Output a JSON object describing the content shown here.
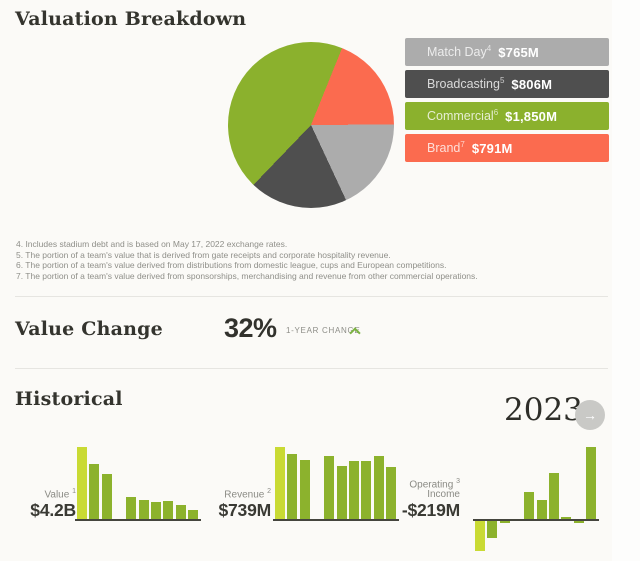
{
  "colors": {
    "page_bg": "#fbfaf7",
    "heading": "#34342e",
    "divider": "#e6e5e1",
    "footnote_text": "#8f8f89",
    "pie_green": "#8bb12d",
    "pie_red": "#fb6b4f",
    "pie_light_gray": "#acacac",
    "pie_dark_gray": "#4f4f4f",
    "bar_highlight": "#c9da34",
    "bar_normal": "#8cb22d",
    "axis": "#45453e",
    "trend_up_green": "#7cb342",
    "arrow_button_bg": "#c9c9c6"
  },
  "icons": {
    "arrow_right": "→"
  },
  "valuation_breakdown": {
    "title": "Valuation Breakdown",
    "legend": [
      {
        "label": "Match Day",
        "footnote": "4",
        "value": "$765M",
        "color": "#acacac"
      },
      {
        "label": "Broadcasting",
        "footnote": "5",
        "value": "$806M",
        "color": "#4f4f4f"
      },
      {
        "label": "Commercial",
        "footnote": "6",
        "value": "$1,850M",
        "color": "#8bb12d"
      },
      {
        "label": "Brand",
        "footnote": "7",
        "value": "$791M",
        "color": "#fb6b4f"
      }
    ],
    "footnotes": [
      "4. Includes stadium debt and is based on May 17, 2022 exchange rates.",
      "5. The portion of a team's value that is derived from gate receipts and corporate hospitality revenue.",
      "6. The portion of a team's value derived from distributions from domestic league, cups and European competitions.",
      "7. The portion of a team's value derived from sponsorships, merchandising and revenue from other commercial operations."
    ]
  },
  "value_change": {
    "title": "Value Change",
    "value": "32%",
    "caption": "1-YEAR CHANGE",
    "trend": "up"
  },
  "historical": {
    "title": "Historical",
    "year": "2023"
  },
  "chart_data": [
    {
      "type": "pie",
      "title": "Valuation Breakdown",
      "unit": "$M",
      "total": 4212,
      "start_angle_deg": 22,
      "slices_draw_order_clockwise": [
        {
          "label": "Brand",
          "footnote": "7",
          "value": 791,
          "value_label": "$791M",
          "color": "#fb6b4f"
        },
        {
          "label": "Match Day",
          "footnote": "4",
          "value": 765,
          "value_label": "$765M",
          "color": "#acacac"
        },
        {
          "label": "Broadcasting",
          "footnote": "5",
          "value": 806,
          "value_label": "$806M",
          "color": "#4f4f4f"
        },
        {
          "label": "Commercial",
          "footnote": "6",
          "value": 1850,
          "value_label": "$1,850M",
          "color": "#8bb12d"
        }
      ],
      "legend_position": "right"
    },
    {
      "type": "bar",
      "title": "Value",
      "title_lines": [
        "Value"
      ],
      "footnote": "1",
      "current_value_label": "$4.2B",
      "order": "most recent year (highlighted) at left; missing slot = no data",
      "bars_rel_height": [
        1,
        0.77,
        0.62,
        null,
        0.3,
        0.27,
        0.235,
        0.245,
        0.19,
        0.13
      ],
      "est_values_usd_billion": [
        4.2,
        3.2,
        2.6,
        null,
        1.25,
        1.15,
        1.0,
        1.03,
        0.8,
        0.55
      ],
      "grid": false
    },
    {
      "type": "bar",
      "title": "Revenue",
      "title_lines": [
        "Revenue"
      ],
      "footnote": "2",
      "current_value_label": "$739M",
      "order": "most recent year (highlighted) at left; missing slot = no data",
      "bars_rel_height": [
        1,
        0.9,
        0.82,
        null,
        0.88,
        0.74,
        0.8,
        0.8,
        0.88,
        0.72
      ],
      "est_values_usd_million": [
        739,
        665,
        606,
        null,
        650,
        547,
        591,
        591,
        650,
        532
      ],
      "grid": false
    },
    {
      "type": "bar",
      "title": "Operating Income",
      "title_lines": [
        "Operating",
        "Income"
      ],
      "footnote": "3",
      "current_value_label": "-$219M",
      "order": "most recent year (highlighted) at left; missing slot = no data",
      "bars_rel_height": [
        -0.42,
        -0.24,
        -0.025,
        null,
        0.37,
        0.27,
        0.64,
        0.025,
        -0.025,
        1
      ],
      "est_values_usd_million": [
        -219,
        -125,
        -13,
        null,
        193,
        141,
        334,
        13,
        -13,
        521
      ],
      "grid": false
    }
  ]
}
